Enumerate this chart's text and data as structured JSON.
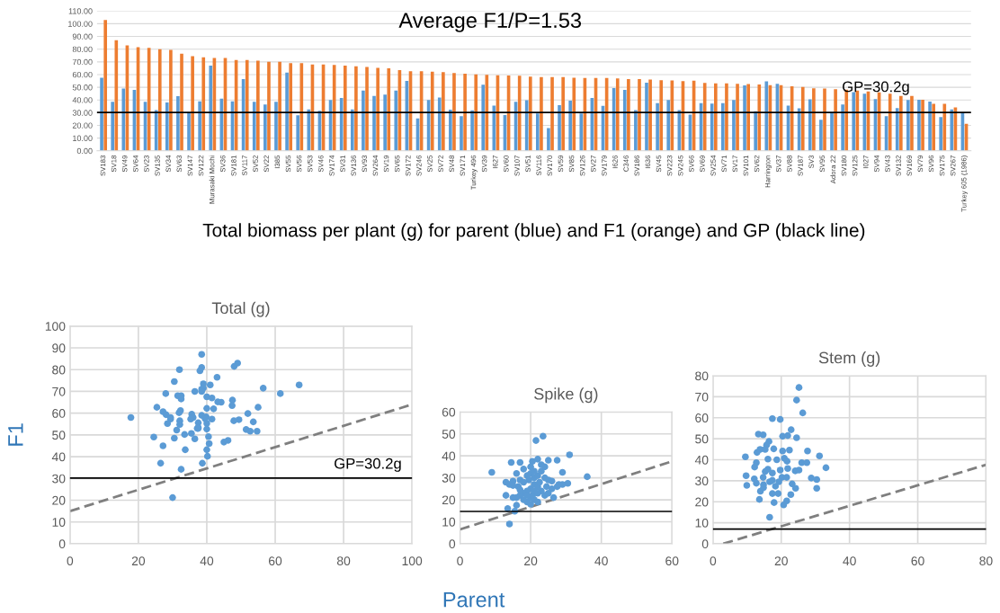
{
  "chart_data": [
    {
      "type": "bar",
      "annotations": [
        "Average F1/P=1.53",
        "Total biomass per plant (g) for parent (blue) and F1 (orange) and GP (black line)"
      ],
      "categories": [
        "SV183",
        "SV18",
        "SV49",
        "SV64",
        "SV23",
        "SV135",
        "SV34",
        "SV63",
        "SV147",
        "SV122",
        "Murasaki Mochi",
        "SV36",
        "SV181",
        "SV117",
        "SV52",
        "SV22",
        "I385",
        "SV55",
        "SV56",
        "SV53",
        "SV46",
        "SV174",
        "SV31",
        "SV136",
        "SV93",
        "SV264",
        "SV19",
        "SV65",
        "SV172",
        "SV246",
        "SV25",
        "SV72",
        "SV48",
        "SV171",
        "Turkey 496",
        "SV39",
        "I627",
        "SV60",
        "SV107",
        "SV51",
        "SV116",
        "SV170",
        "SV59",
        "SV85",
        "SV126",
        "SV27",
        "SV179",
        "I626",
        "C346",
        "SV186",
        "I636",
        "SV45",
        "SV223",
        "SV245",
        "SV66",
        "SV69",
        "SV254",
        "SV71",
        "SV17",
        "SV101",
        "SV62",
        "Harrington",
        "SV37",
        "SV88",
        "SV187",
        "SV3",
        "SV95",
        "Adora 22",
        "SV180",
        "SV125",
        "I027",
        "SV94",
        "SV43",
        "SV132",
        "SV169",
        "SV79",
        "SV96",
        "SV175",
        "SV267",
        "Turkey 605 (1986)"
      ],
      "series": [
        {
          "color": "#5b9bd5",
          "values": [
            57.5,
            38.5,
            49,
            48,
            38.5,
            32,
            38,
            43,
            30.5,
            39,
            67,
            41,
            39,
            56.5,
            38.5,
            36.5,
            38.5,
            61.5,
            28,
            32.5,
            31.5,
            40,
            41.5,
            32.5,
            47.5,
            43.2,
            44.2,
            47.4,
            55,
            25.4,
            40,
            42,
            32.3,
            27.2,
            31.9,
            52,
            35.6,
            28.1,
            38.5,
            39.8,
            29.4,
            17.8,
            36,
            39.5,
            29.4,
            41.5,
            35.3,
            49.4,
            47.9,
            32.1,
            53.6,
            37.5,
            40,
            32.1,
            28.5,
            37.5,
            37.2,
            37.5,
            40,
            51.5,
            31.2,
            54.7,
            52.7,
            35.5,
            33.5,
            40.5,
            24.5,
            30.5,
            36.5,
            46.2,
            45,
            40.7,
            27.2,
            33.7,
            40,
            40.2,
            38.7,
            26.5,
            32.5,
            30
          ]
        },
        {
          "color": "#ed7d31",
          "values": [
            103,
            87,
            83,
            81.5,
            81,
            80,
            79.5,
            76.5,
            74.5,
            73.5,
            73,
            73,
            71.5,
            71.5,
            71,
            70,
            70,
            69,
            69,
            68,
            68,
            67.5,
            67,
            66.5,
            66,
            65.2,
            65,
            63.5,
            62.7,
            62.7,
            62.2,
            62,
            61.2,
            60.7,
            60.2,
            59.8,
            59.5,
            59.3,
            59,
            58.3,
            58,
            58,
            58,
            57.5,
            57.3,
            57.3,
            57.3,
            57,
            56.5,
            56.5,
            56,
            55.6,
            55.3,
            54.8,
            55.2,
            53.5,
            53,
            53,
            52.7,
            52.5,
            52.2,
            51.7,
            51.7,
            50.7,
            50.2,
            49.2,
            49,
            48.5,
            48.2,
            47.5,
            46.7,
            46,
            45,
            43.2,
            43.2,
            40.2,
            37,
            37,
            34.2,
            21.2
          ]
        }
      ],
      "ylim": [
        0,
        110
      ],
      "yticks": [
        {
          "value": 0,
          "label": "0.00"
        },
        {
          "value": 10,
          "label": "10.00"
        },
        {
          "value": 20,
          "label": "20.00"
        },
        {
          "value": 30,
          "label": "30.00"
        },
        {
          "value": 40,
          "label": "40.00"
        },
        {
          "value": 50,
          "label": "50.00"
        },
        {
          "value": 60,
          "label": "60.00"
        },
        {
          "value": 70,
          "label": "70.00"
        },
        {
          "value": 80,
          "label": "80.00"
        },
        {
          "value": 90,
          "label": "90.00"
        },
        {
          "value": 100,
          "label": "100.00"
        },
        {
          "value": 110,
          "label": "110.00"
        }
      ],
      "ref_lines": [
        {
          "axis": "y",
          "value": 30.2,
          "label": "GP=30.2g",
          "color": "#000000"
        }
      ],
      "grid": "y"
    },
    {
      "type": "scatter",
      "title": "Total (g)",
      "xlabel": "Parent",
      "ylabel": "F1",
      "grid": true,
      "series": [
        {
          "type": "scatter",
          "marker": "circle",
          "color": "#5b9bd5",
          "x": [
            38.5,
            49,
            48,
            38.5,
            32,
            38,
            43,
            30.5,
            39,
            67,
            41,
            39,
            56.5,
            38.5,
            36.5,
            38.5,
            61.5,
            28,
            32.5,
            31.5,
            40,
            41.5,
            32.5,
            47.5,
            43.2,
            44.2,
            47.4,
            55,
            25.4,
            40,
            42,
            32.3,
            27.2,
            31.9,
            52,
            35.6,
            28.1,
            38.5,
            39.8,
            29.4,
            17.8,
            36,
            39.5,
            29.4,
            41.5,
            35.3,
            49.4,
            47.9,
            32.1,
            53.6,
            37.5,
            40,
            32.1,
            28.5,
            37.5,
            37.2,
            37.5,
            40,
            51.5,
            31.2,
            54.7,
            52.7,
            35.5,
            33.5,
            40.5,
            24.5,
            30.5,
            36.5,
            46.2,
            45,
            40.7,
            27.2,
            33.7,
            40,
            40.2,
            38.7,
            26.5,
            32.5,
            30
          ],
          "values": [
            87,
            83,
            81.5,
            81,
            80,
            79.5,
            76.5,
            74.5,
            73.5,
            73,
            73,
            71.5,
            71.5,
            71,
            70,
            70,
            69,
            69,
            68,
            68,
            67.5,
            67,
            66.5,
            66,
            65.2,
            65,
            63.5,
            62.7,
            62.7,
            62.2,
            62,
            61.2,
            60.7,
            60.2,
            59.8,
            59.5,
            59.3,
            59,
            58.3,
            58,
            58,
            58,
            57.5,
            57.3,
            57.3,
            57.3,
            57,
            56.5,
            56.5,
            56,
            55.6,
            55.3,
            54.8,
            55.2,
            53.5,
            53,
            53,
            52.7,
            52.5,
            52.2,
            51.7,
            51.7,
            50.7,
            50.2,
            49.2,
            49,
            48.5,
            48.2,
            47.5,
            46.7,
            46,
            45,
            43.2,
            43.2,
            40.2,
            37,
            37,
            34.2,
            21.2
          ]
        },
        {
          "type": "line",
          "color": "#7f7f7f",
          "line_style": "dashed",
          "x": [
            0,
            100
          ],
          "values": [
            15,
            64
          ]
        }
      ],
      "xlim": [
        0,
        100
      ],
      "xticks": [
        0,
        20,
        40,
        60,
        80,
        100
      ],
      "ylim": [
        0,
        100
      ],
      "yticks": [
        0,
        10,
        20,
        30,
        40,
        50,
        60,
        70,
        80,
        90,
        100
      ],
      "ref_lines": [
        {
          "axis": "y",
          "value": 30.2,
          "label": "GP=30.2g",
          "color": "#000000"
        }
      ]
    },
    {
      "type": "scatter",
      "title": "Spike (g)",
      "grid": true,
      "series": [
        {
          "type": "scatter",
          "marker": "circle",
          "color": "#5b9bd5",
          "x": [
            9,
            14.5,
            17,
            20.5,
            21.5,
            23.5,
            22,
            25,
            27.5,
            31,
            36,
            29,
            30.5,
            29,
            26,
            27.5,
            26.5,
            24,
            24.5,
            13,
            14,
            15,
            16,
            17,
            18,
            19,
            20,
            21,
            22,
            23,
            24,
            25,
            20,
            21,
            22,
            23,
            19,
            18,
            17,
            16,
            15,
            13,
            13.5,
            15.5,
            16,
            14,
            19,
            20,
            21,
            22,
            20.5,
            22.5,
            24,
            18,
            16.5,
            15,
            17,
            19.5,
            21,
            23,
            20,
            26,
            25,
            28,
            20,
            22,
            21,
            19,
            18
          ],
          "values": [
            32.5,
            37,
            37,
            37.5,
            47,
            49,
            38.5,
            38,
            38,
            40.5,
            30.5,
            32.5,
            27.5,
            27,
            28.5,
            26,
            21,
            22,
            26,
            28,
            27,
            28.5,
            32,
            29,
            34,
            31,
            32,
            30,
            31,
            33,
            35,
            29,
            25,
            27,
            26,
            24,
            24,
            23,
            22,
            21,
            21,
            22,
            16,
            14.8,
            17.5,
            9,
            19,
            18,
            20,
            19,
            22,
            28,
            30,
            28,
            26,
            26.5,
            24.5,
            29,
            33,
            36,
            35,
            25,
            23,
            27,
            21,
            23,
            24,
            22,
            20
          ]
        },
        {
          "type": "line",
          "color": "#7f7f7f",
          "line_style": "dashed",
          "x": [
            0,
            60
          ],
          "values": [
            6.5,
            37.5
          ]
        }
      ],
      "xlim": [
        0,
        60
      ],
      "xticks": [
        0,
        20,
        40,
        60
      ],
      "ylim": [
        0,
        60
      ],
      "yticks": [
        0,
        10,
        20,
        30,
        40,
        50,
        60
      ],
      "ref_lines": [
        {
          "axis": "y",
          "value": 14.7,
          "color": "#000000"
        }
      ]
    },
    {
      "type": "scatter",
      "title": "Stem (g)",
      "grid": true,
      "series": [
        {
          "type": "scatter",
          "marker": "circle",
          "color": "#5b9bd5",
          "x": [
            25.2,
            24.5,
            26.3,
            17.4,
            19.7,
            22.9,
            13.3,
            14.7,
            20.4,
            21.9,
            24.5,
            16.4,
            15.7,
            13.8,
            12.9,
            15.3,
            17.8,
            20.4,
            22.4,
            27.7,
            31.2,
            9.5,
            16.1,
            18.7,
            20.9,
            21.7,
            26,
            27.5,
            12.7,
            12.2,
            33.1,
            16.1,
            19.7,
            21.9,
            24.1,
            25.2,
            9.7,
            12.1,
            14.7,
            17.4,
            20.2,
            21.6,
            28.8,
            30.4,
            9.9,
            12.7,
            14.8,
            16.6,
            23.2,
            24.2,
            30.4,
            13.9,
            17.4,
            19.1,
            22.8,
            13.6,
            17.9,
            21.6,
            20.7,
            16.6,
            14.8,
            18.3,
            19.3,
            17.4,
            15.3
          ],
          "values": [
            74.4,
            68.4,
            62.3,
            59.6,
            59.2,
            54.3,
            52.2,
            51.9,
            51.2,
            51.5,
            50.5,
            48.7,
            47,
            44.9,
            43.5,
            44.9,
            45.2,
            44.2,
            44.6,
            44.2,
            41.8,
            41.4,
            40.3,
            40,
            40.7,
            39.3,
            38.6,
            38.6,
            38.6,
            36.5,
            36.2,
            35.5,
            35.1,
            35.8,
            34.7,
            35.1,
            32.4,
            30.9,
            31.6,
            33.7,
            31.6,
            31.6,
            31.3,
            30.6,
            27.8,
            28.8,
            28.1,
            29.5,
            28.5,
            26.4,
            26.4,
            25,
            23.9,
            23.9,
            23.4,
            21.1,
            19.6,
            20.4,
            18.5,
            12.6,
            26.7,
            27.4,
            29.5,
            30.2,
            34.4
          ]
        },
        {
          "type": "line",
          "color": "#7f7f7f",
          "line_style": "dashed",
          "x": [
            3,
            80
          ],
          "values": [
            0,
            37.6
          ]
        }
      ],
      "xlim": [
        0,
        80
      ],
      "xticks": [
        0,
        20,
        40,
        60,
        80
      ],
      "ylim": [
        0,
        80
      ],
      "yticks": [
        0,
        10,
        20,
        30,
        40,
        50,
        60,
        70,
        80
      ],
      "ref_lines": [
        {
          "axis": "y",
          "value": 7.0,
          "color": "#000000"
        }
      ]
    }
  ]
}
